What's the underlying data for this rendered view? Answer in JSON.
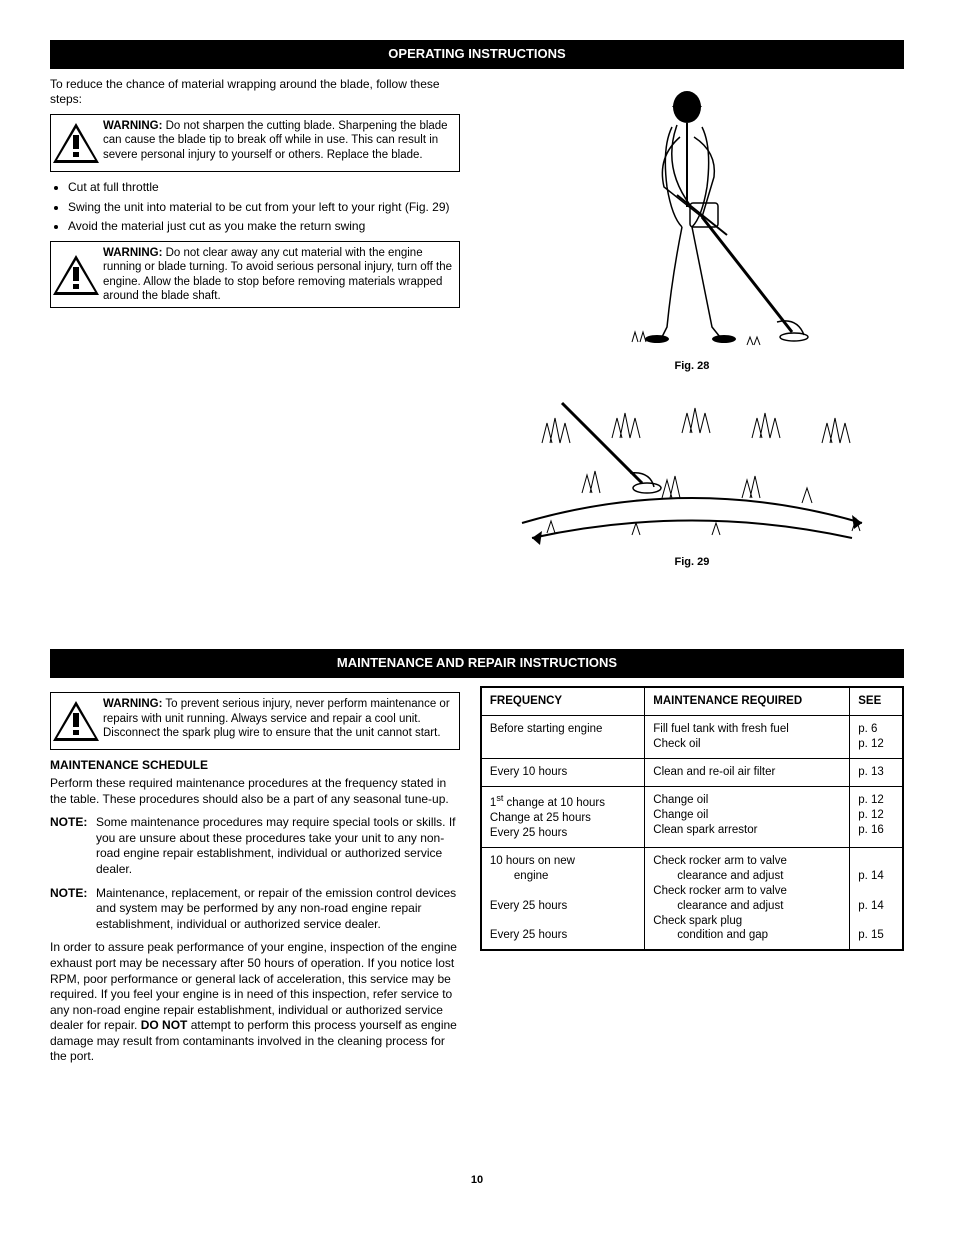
{
  "section1": {
    "header": "OPERATING INSTRUCTIONS",
    "intro": "To reduce the chance of material wrapping around the blade, follow these steps:",
    "warning1": {
      "label": "WARNING:",
      "text": "Do not sharpen the cutting blade. Sharpening the blade can cause the blade tip to break off while in use. This can result in severe personal injury to yourself or others. Replace the blade."
    },
    "bullets": [
      "Cut at full throttle",
      "Swing the unit into material to be cut from your left to your right (Fig. 29)",
      "Avoid the material just cut as you make the return swing"
    ],
    "warning2": {
      "label": "WARNING:",
      "text": "Do not clear away any cut material with the engine running or blade turning. To avoid serious personal injury, turn off the engine. Allow the blade to stop before removing materials wrapped around the blade shaft."
    },
    "fig28_caption": "Fig. 28",
    "fig29_caption": "Fig. 29"
  },
  "section2": {
    "header": "MAINTENANCE AND REPAIR INSTRUCTIONS",
    "warning": {
      "label": "WARNING:",
      "text": "To prevent serious injury, never perform maintenance or repairs with unit running. Always service and repair a cool unit. Disconnect the spark plug wire to ensure that the unit cannot start."
    },
    "schedule_heading": "MAINTENANCE SCHEDULE",
    "schedule_intro": "Perform these required maintenance procedures at the frequency stated in the table. These procedures should also be a part of any seasonal tune-up.",
    "note1": {
      "label": "NOTE:",
      "text": "Some maintenance procedures may require special tools or skills. If you are unsure about these procedures take your unit to any non-road engine repair establishment, individual or authorized service dealer."
    },
    "note2": {
      "label": "NOTE:",
      "text": "Maintenance, replacement, or repair of the emission control devices and system may be performed by any non-road engine repair establishment, individual or authorized service dealer."
    },
    "closing_pre": "In order to assure peak performance of your engine, inspection of the engine exhaust port may be necessary after 50 hours of operation. If you notice lost RPM, poor performance or general lack of acceleration, this service may be required. If you feel your engine is in need of this inspection, refer service to any non-road engine repair establishment, individual or authorized service dealer for repair. ",
    "closing_donot": "DO NOT",
    "closing_post": " attempt to perform this process yourself as engine damage may result from contaminants involved in the cleaning process for the port.",
    "table": {
      "headers": [
        "FREQUENCY",
        "MAINTENANCE REQUIRED",
        "SEE"
      ],
      "rows": [
        {
          "freq": "Before starting engine",
          "maint": "Fill fuel tank with fresh fuel\nCheck oil",
          "see": "p. 6\np. 12"
        },
        {
          "freq": "Every 10 hours",
          "maint": "Clean and re-oil air filter",
          "see": "p. 13"
        },
        {
          "freq_html": "1<span class='sup'>st</span> change at 10 hours\nChange at 25 hours\nEvery 25 hours",
          "maint": "Change oil\nChange oil\nClean spark arrestor",
          "see": "p. 12\np. 12\np. 16"
        },
        {
          "freq_html": "10 hours on new\n<span class='indent-sub'>engine</span>\nEvery 25 hours\n\nEvery 25 hours",
          "maint_html": "Check rocker arm to valve\n<span class='indent-sub'>clearance and adjust</span>Check rocker arm to valve\n<span class='indent-sub'>clearance and adjust</span>Check spark plug\n<span class='indent-sub'>condition and gap</span>",
          "see": "\np. 14\n\np. 14\n\np. 15"
        }
      ]
    }
  },
  "page_number": "10",
  "colors": {
    "black": "#000000",
    "white": "#ffffff"
  }
}
